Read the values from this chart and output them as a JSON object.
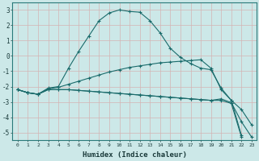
{
  "xlabel": "Humidex (Indice chaleur)",
  "background_color": "#cce8e8",
  "grid_color": "#d4b8b8",
  "grid_color_major": "#ffffff",
  "line_color": "#1a6b6b",
  "xlim": [
    -0.5,
    23.5
  ],
  "ylim": [
    -5.5,
    3.5
  ],
  "yticks": [
    3,
    2,
    1,
    0,
    -1,
    -2,
    -3,
    -4,
    -5
  ],
  "xticks": [
    0,
    1,
    2,
    3,
    4,
    5,
    6,
    7,
    8,
    9,
    10,
    11,
    12,
    13,
    14,
    15,
    16,
    17,
    18,
    19,
    20,
    21,
    22,
    23
  ],
  "series": [
    {
      "x": [
        0,
        1,
        2,
        3,
        4,
        5,
        6,
        7,
        8,
        9,
        10,
        11,
        12,
        13,
        14,
        15,
        16,
        17,
        18,
        19,
        20,
        21,
        22,
        23
      ],
      "y": [
        -2.2,
        -2.4,
        -2.5,
        -2.1,
        -2.0,
        -0.8,
        0.3,
        1.3,
        2.3,
        2.8,
        3.0,
        2.9,
        2.85,
        2.3,
        1.5,
        0.5,
        -0.1,
        -0.5,
        -0.8,
        -0.9,
        -2.1,
        -2.9,
        -3.5,
        -4.5
      ]
    },
    {
      "x": [
        0,
        1,
        2,
        3,
        4,
        5,
        6,
        7,
        8,
        9,
        10,
        11,
        12,
        13,
        14,
        15,
        16,
        17,
        18,
        19,
        20,
        21,
        22,
        23
      ],
      "y": [
        -2.2,
        -2.4,
        -2.5,
        -2.15,
        -2.05,
        -1.85,
        -1.65,
        -1.45,
        -1.25,
        -1.05,
        -0.9,
        -0.75,
        -0.65,
        -0.55,
        -0.45,
        -0.4,
        -0.35,
        -0.3,
        -0.25,
        -0.8,
        -2.2,
        -2.9,
        -5.2,
        null
      ]
    },
    {
      "x": [
        0,
        1,
        2,
        3,
        4,
        5,
        6,
        7,
        8,
        9,
        10,
        11,
        12,
        13,
        14,
        15,
        16,
        17,
        18,
        19,
        20,
        21,
        22,
        23
      ],
      "y": [
        -2.2,
        -2.4,
        -2.5,
        -2.2,
        -2.2,
        -2.2,
        -2.25,
        -2.3,
        -2.35,
        -2.4,
        -2.45,
        -2.5,
        -2.55,
        -2.6,
        -2.65,
        -2.7,
        -2.75,
        -2.8,
        -2.85,
        -2.9,
        -2.8,
        -3.05,
        -4.3,
        -5.3
      ]
    },
    {
      "x": [
        0,
        1,
        2,
        3,
        4,
        5,
        6,
        7,
        8,
        9,
        10,
        11,
        12,
        13,
        14,
        15,
        16,
        17,
        18,
        19,
        20,
        21,
        22
      ],
      "y": [
        -2.2,
        -2.4,
        -2.5,
        -2.2,
        -2.2,
        -2.2,
        -2.25,
        -2.3,
        -2.35,
        -2.4,
        -2.45,
        -2.5,
        -2.55,
        -2.6,
        -2.65,
        -2.7,
        -2.75,
        -2.8,
        -2.85,
        -2.9,
        -2.9,
        -3.1,
        -5.3
      ]
    }
  ]
}
